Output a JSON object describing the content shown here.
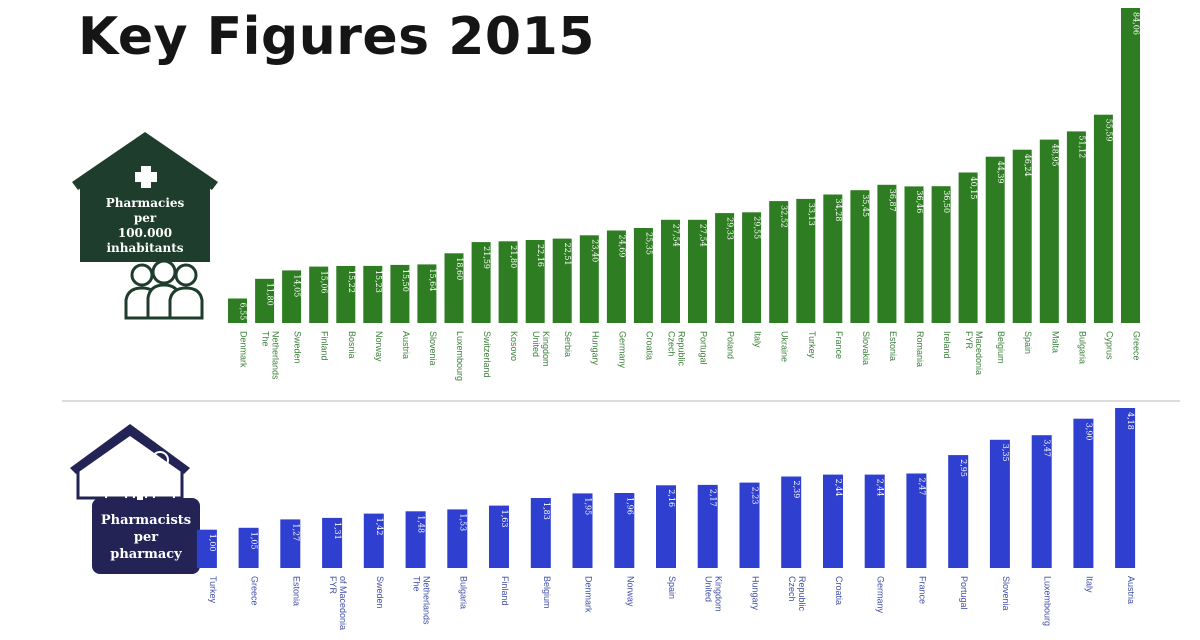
{
  "title": "Key Figures 2015",
  "colors": {
    "green": "#2f7d23",
    "green_dark": "#1e3d2c",
    "blue": "#2f3fd0",
    "navy": "#232455",
    "divider": "#b9b9b9"
  },
  "icons": {
    "top": "house-with-cross-and-people-icon",
    "bottom": "house-with-cross-and-people-icon"
  },
  "chart_data": [
    {
      "type": "bar",
      "label_lines": [
        "Pharmacies",
        "per",
        "100.000",
        "inhabitants"
      ],
      "categories": [
        "Denmark",
        "The Netherlands",
        "Sweden",
        "Finland",
        "Bosnia",
        "Norway",
        "Austria",
        "Slovenia",
        "Luxembourg",
        "Switzerland",
        "Kosovo",
        "United Kingdom",
        "Serbia",
        "Hungary",
        "Germany",
        "Croatia",
        "Czech Republic",
        "Portugal",
        "Poland",
        "Italy",
        "Ukraine",
        "Turkey",
        "France",
        "Slovakia",
        "Estonia",
        "Romania",
        "Ireland",
        "FYR Macedonia",
        "Belgium",
        "Spain",
        "Malta",
        "Bulgaria",
        "Cyprus",
        "Greece"
      ],
      "value_labels": [
        "6,55",
        "11,80",
        "14,05",
        "15,06",
        "15,22",
        "15,23",
        "15,50",
        "15,64",
        "18,60",
        "21,59",
        "21,80",
        "22,16",
        "22,51",
        "23,40",
        "24,69",
        "25,35",
        "27,54",
        "27,54",
        "29,33",
        "29,55",
        "32,52",
        "33,13",
        "34,28",
        "35,45",
        "36,87",
        "36,46",
        "36,50",
        "40,15",
        "44,39",
        "46,24",
        "48,95",
        "51,12",
        "55,59",
        "84,06"
      ],
      "values": [
        6.55,
        11.8,
        14.05,
        15.06,
        15.22,
        15.23,
        15.5,
        15.64,
        18.6,
        21.59,
        21.8,
        22.16,
        22.51,
        23.4,
        24.69,
        25.35,
        27.54,
        27.54,
        29.33,
        29.55,
        32.52,
        33.13,
        34.28,
        35.45,
        36.87,
        36.46,
        36.5,
        40.15,
        44.39,
        46.24,
        48.95,
        51.12,
        55.59,
        84.06
      ],
      "ylim": [
        0,
        84.06
      ],
      "grid": false,
      "legend": "none"
    },
    {
      "type": "bar",
      "label_lines": [
        "Pharmacists",
        "per",
        "pharmacy"
      ],
      "categories": [
        "Turkey",
        "Greece",
        "Estonia",
        "FYR of Macedonia",
        "Sweden",
        "The Netherlands",
        "Bulgaria",
        "Finland",
        "Belgium",
        "Denmark",
        "Norway",
        "Spain",
        "United Kingdom",
        "Hungary",
        "Czech Republic",
        "Croatia",
        "Germany",
        "France",
        "Portugal",
        "Slovenia",
        "Luxembourg",
        "Italy",
        "Austria"
      ],
      "value_labels": [
        "1,00",
        "1,05",
        "1,27",
        "1,31",
        "1,42",
        "1,48",
        "1,53",
        "1,63",
        "1,83",
        "1,95",
        "1,96",
        "2,16",
        "2,17",
        "2,23",
        "2,39",
        "2,44",
        "2,44",
        "2,47",
        "2,95",
        "3,35",
        "3,47",
        "3,90",
        "4,18"
      ],
      "values": [
        1.0,
        1.05,
        1.27,
        1.31,
        1.42,
        1.48,
        1.53,
        1.63,
        1.83,
        1.95,
        1.96,
        2.16,
        2.17,
        2.23,
        2.39,
        2.44,
        2.44,
        2.47,
        2.95,
        3.35,
        3.47,
        3.9,
        4.18
      ],
      "ylim": [
        0,
        4.18
      ],
      "grid": false,
      "legend": "none"
    }
  ]
}
